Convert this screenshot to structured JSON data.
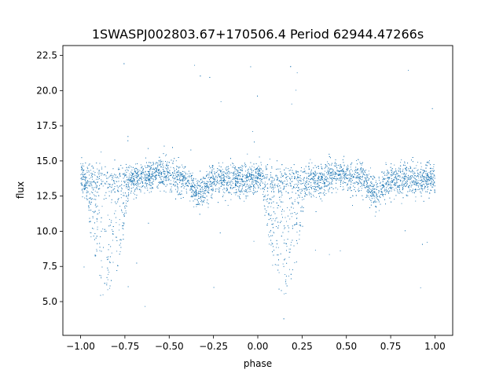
{
  "chart_data": {
    "type": "scatter",
    "title": "1SWASPJ002803.67+170506.4 Period 62944.47266s",
    "xlabel": "phase",
    "ylabel": "flux",
    "xlim": [
      -1.1,
      1.1
    ],
    "ylim": [
      2.6,
      23.2
    ],
    "xticks": [
      -1.0,
      -0.75,
      -0.5,
      -0.25,
      0.0,
      0.25,
      0.5,
      0.75,
      1.0
    ],
    "xtick_labels": [
      "−1.00",
      "−0.75",
      "−0.50",
      "−0.25",
      "0.00",
      "0.25",
      "0.50",
      "0.75",
      "1.00"
    ],
    "yticks": [
      5.0,
      7.5,
      10.0,
      12.5,
      15.0,
      17.5,
      20.0,
      22.5
    ],
    "ytick_labels": [
      "5.0",
      "7.5",
      "10.0",
      "12.5",
      "15.0",
      "17.5",
      "20.0",
      "22.5"
    ],
    "grid": false,
    "legend": "none",
    "marker_color": "#1f77b4",
    "marker": "small dots",
    "light_curve_model": {
      "phase_range": [
        -1.0,
        1.0
      ],
      "baseline_flux": 13.7,
      "scatter_sigma": 0.55,
      "primary_eclipse_centers": [
        -0.85,
        0.15
      ],
      "primary_eclipse_half_width": 0.12,
      "primary_eclipse_min_flux": 5.5,
      "secondary_dip_centers": [
        -0.33,
        0.67
      ],
      "secondary_dip_depth": 1.0,
      "brightening_centers": [
        -0.55,
        0.45
      ],
      "brightening_amplitude": 0.4,
      "outlier_flux_range": [
        3.5,
        22.2
      ]
    }
  }
}
